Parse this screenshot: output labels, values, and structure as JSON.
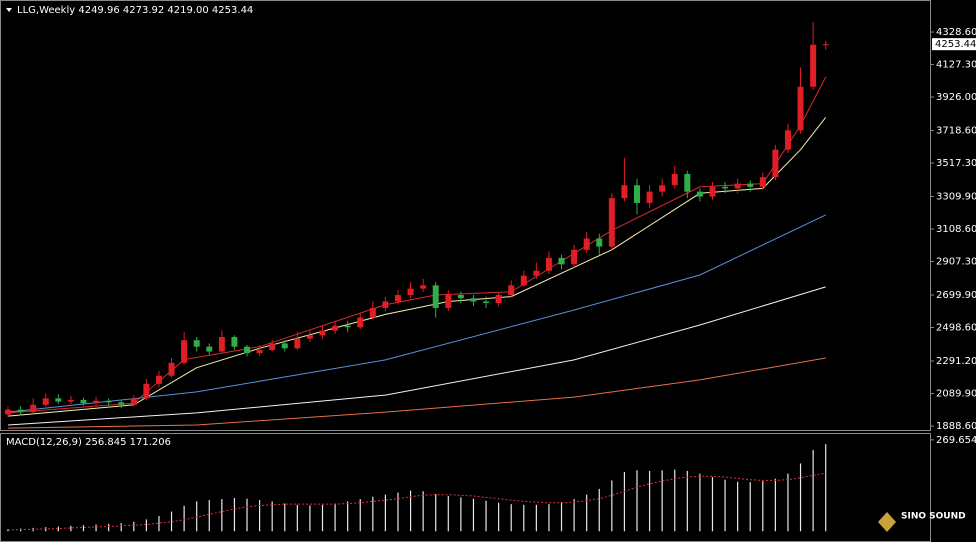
{
  "chart_data": [
    {
      "type": "candlestick",
      "title": "LLG,Weekly  4249.96 4273.92 4219.00 4253.44",
      "open": [
        1960,
        1990,
        1975,
        2020,
        2060,
        2040,
        2050,
        2030,
        2045,
        2035,
        2020,
        2060,
        2150,
        2200,
        2280,
        2420,
        2380,
        2350,
        2440,
        2380,
        2340,
        2360,
        2400,
        2370,
        2430,
        2450,
        2480,
        2510,
        2500,
        2560,
        2620,
        2660,
        2700,
        2740,
        2760,
        2620,
        2700,
        2680,
        2660,
        2650,
        2700,
        2760,
        2820,
        2850,
        2930,
        2890,
        2980,
        3050,
        3000,
        3300,
        3380,
        3270,
        3340,
        3380,
        3450,
        3340,
        3310,
        3370,
        3360,
        3390,
        3370,
        3430,
        3600,
        3720,
        3990,
        4249.96
      ],
      "high": [
        2010,
        2010,
        2060,
        2090,
        2085,
        2075,
        2065,
        2070,
        2060,
        2050,
        2080,
        2180,
        2230,
        2310,
        2470,
        2440,
        2400,
        2480,
        2450,
        2390,
        2390,
        2420,
        2420,
        2470,
        2480,
        2510,
        2540,
        2540,
        2590,
        2660,
        2690,
        2730,
        2780,
        2800,
        2780,
        2730,
        2720,
        2700,
        2690,
        2720,
        2790,
        2850,
        2900,
        2970,
        2950,
        3010,
        3090,
        3080,
        3330,
        3550,
        3420,
        3380,
        3420,
        3500,
        3470,
        3360,
        3400,
        3400,
        3420,
        3410,
        3460,
        3630,
        3760,
        4110,
        4390,
        4273.92
      ],
      "low": [
        1945,
        1955,
        1965,
        2010,
        2025,
        2025,
        2015,
        2015,
        2015,
        2000,
        2010,
        2050,
        2130,
        2190,
        2270,
        2350,
        2330,
        2340,
        2360,
        2320,
        2320,
        2350,
        2350,
        2360,
        2410,
        2430,
        2460,
        2470,
        2490,
        2550,
        2600,
        2640,
        2680,
        2720,
        2560,
        2600,
        2650,
        2630,
        2620,
        2630,
        2690,
        2750,
        2800,
        2830,
        2860,
        2870,
        2960,
        2950,
        2980,
        3280,
        3200,
        3240,
        3310,
        3360,
        3300,
        3280,
        3290,
        3330,
        3330,
        3340,
        3350,
        3410,
        3580,
        3700,
        3970,
        4219.0
      ],
      "close": [
        1990,
        1975,
        2020,
        2060,
        2040,
        2050,
        2030,
        2045,
        2035,
        2020,
        2060,
        2150,
        2200,
        2280,
        2420,
        2380,
        2350,
        2440,
        2380,
        2340,
        2360,
        2400,
        2370,
        2430,
        2450,
        2480,
        2510,
        2500,
        2560,
        2620,
        2660,
        2700,
        2740,
        2760,
        2620,
        2700,
        2680,
        2660,
        2650,
        2700,
        2760,
        2820,
        2850,
        2930,
        2890,
        2980,
        3050,
        3000,
        3300,
        3380,
        3270,
        3340,
        3380,
        3450,
        3340,
        3310,
        3370,
        3360,
        3390,
        3370,
        3430,
        3600,
        3720,
        3990,
        4250,
        4253.44
      ],
      "up_color": "#e01e26",
      "down_color": "#2fae4a",
      "series": [
        {
          "color": "#d8282e",
          "x": [
            0,
            10,
            14,
            20,
            30,
            34,
            40,
            48,
            55,
            60,
            63,
            65
          ],
          "values": [
            1970,
            2030,
            2300,
            2380,
            2640,
            2700,
            2720,
            3100,
            3370,
            3390,
            3750,
            4050
          ]
        },
        {
          "color": "#f4f0b0",
          "x": [
            0,
            10,
            15,
            20,
            30,
            35,
            40,
            48,
            55,
            60,
            63,
            65
          ],
          "values": [
            1950,
            2020,
            2250,
            2370,
            2580,
            2660,
            2690,
            2980,
            3330,
            3360,
            3600,
            3800
          ]
        },
        {
          "color": "#5a8fd8",
          "x": [
            0,
            15,
            30,
            45,
            55,
            65
          ],
          "values": [
            1975,
            2100,
            2298,
            2607,
            2824,
            3196
          ]
        },
        {
          "color": "#f2f2f2",
          "x": [
            0,
            15,
            30,
            45,
            55,
            65
          ],
          "values": [
            1895,
            1970,
            2080,
            2298,
            2514,
            2750
          ]
        },
        {
          "color": "#e8704a",
          "x": [
            0,
            15,
            30,
            45,
            55,
            65
          ],
          "values": [
            1876,
            1895,
            1975,
            2068,
            2174,
            2310
          ]
        }
      ],
      "ylim": [
        1864,
        4527
      ],
      "yticks": [
        {
          "value": 4328.6,
          "label": "4328.60"
        },
        {
          "value": 4127.3,
          "label": "4127.30"
        },
        {
          "value": 3926,
          "label": "3926.00"
        },
        {
          "value": 3718.6,
          "label": "3718.60"
        },
        {
          "value": 3517.3,
          "label": "3517.30"
        },
        {
          "value": 3309.9,
          "label": "3309.90"
        },
        {
          "value": 3108.6,
          "label": "3108.60"
        },
        {
          "value": 2907.3,
          "label": "2907.30"
        },
        {
          "value": 2699.9,
          "label": "2699.90"
        },
        {
          "value": 2498.6,
          "label": "2498.60"
        },
        {
          "value": 2291.2,
          "label": "2291.20"
        },
        {
          "value": 2089.9,
          "label": "2089.90"
        },
        {
          "value": 1888.6,
          "label": "1888.60"
        }
      ]
    },
    {
      "type": "macd",
      "title": "MACD(12,26,9) 256.845 171.206",
      "values": [
        6,
        8,
        10,
        12,
        14,
        16,
        18,
        20,
        22,
        24,
        28,
        35,
        45,
        58,
        75,
        88,
        92,
        95,
        98,
        96,
        92,
        88,
        82,
        78,
        76,
        78,
        82,
        88,
        95,
        102,
        108,
        114,
        120,
        118,
        110,
        104,
        100,
        96,
        90,
        84,
        80,
        78,
        78,
        80,
        86,
        95,
        108,
        125,
        150,
        175,
        180,
        178,
        180,
        182,
        178,
        170,
        160,
        152,
        146,
        145,
        148,
        155,
        170,
        200,
        240,
        256.845
      ],
      "color": "#e8e8e8",
      "signal": {
        "color": "#e0303a",
        "values": [
          4,
          5,
          6,
          7,
          8,
          10,
          11,
          13,
          14,
          16,
          18,
          20,
          24,
          28,
          34,
          42,
          50,
          58,
          66,
          72,
          76,
          78,
          80,
          80,
          80,
          80,
          80,
          82,
          84,
          88,
          92,
          96,
          102,
          106,
          108,
          108,
          106,
          104,
          100,
          96,
          92,
          88,
          86,
          84,
          84,
          86,
          90,
          96,
          106,
          118,
          130,
          140,
          148,
          155,
          160,
          162,
          162,
          160,
          156,
          152,
          150,
          150,
          152,
          158,
          165,
          171.206
        ]
      },
      "ylim": [
        -28.7,
        286.9
      ],
      "yticks": [
        269.654
      ]
    }
  ],
  "watermark": "SINO SOUND"
}
